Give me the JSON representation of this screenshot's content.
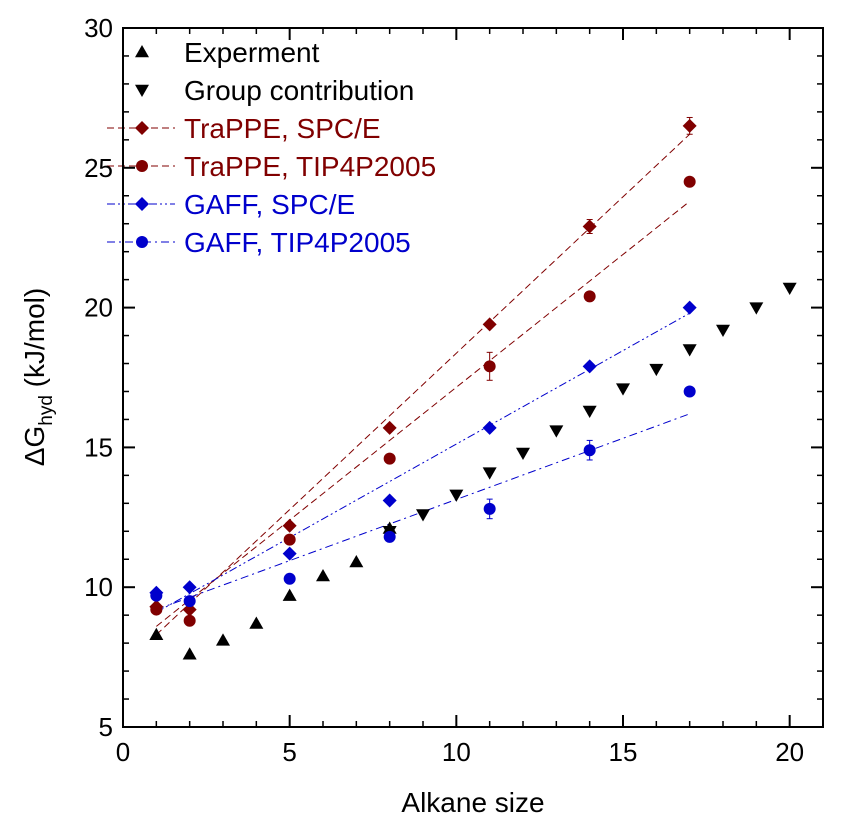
{
  "chart_data": {
    "type": "scatter",
    "xlabel": "Alkane size",
    "ylabel": {
      "main": "ΔG",
      "sub": "hyd",
      "unit": " (kJ/mol)"
    },
    "xlim": [
      0,
      21
    ],
    "ylim": [
      5,
      30
    ],
    "x_ticks": [
      0,
      5,
      10,
      15,
      20
    ],
    "y_ticks": [
      5,
      10,
      15,
      20,
      25,
      30
    ],
    "x_tick_labels": [
      "0",
      "5",
      "10",
      "15",
      "20"
    ],
    "y_tick_labels": [
      "5",
      "10",
      "15",
      "20",
      "25",
      "30"
    ],
    "grid": false,
    "legend_position": "top-left",
    "series": [
      {
        "name": "Experment",
        "marker": "triangle-up",
        "color": "#000000",
        "x": [
          1,
          2,
          3,
          4,
          5,
          6,
          7,
          8
        ],
        "y": [
          8.3,
          7.6,
          8.1,
          8.7,
          9.7,
          10.4,
          10.9,
          12.1
        ]
      },
      {
        "name": "Group contribution",
        "marker": "triangle-down",
        "color": "#000000",
        "x": [
          8,
          9,
          10,
          11,
          12,
          13,
          14,
          15,
          16,
          17,
          18,
          19,
          20
        ],
        "y": [
          12.0,
          12.6,
          13.3,
          14.1,
          14.8,
          15.6,
          16.3,
          17.1,
          17.8,
          18.5,
          19.2,
          20.0,
          20.7
        ]
      },
      {
        "name": "TraPPE, SPC/E",
        "marker": "diamond",
        "color": "#800000",
        "x": [
          1,
          2,
          5,
          8,
          11,
          14,
          17
        ],
        "y": [
          9.3,
          9.2,
          12.2,
          15.7,
          19.4,
          22.9,
          26.5
        ],
        "err": [
          0.1,
          0.1,
          0.1,
          0.1,
          0.1,
          0.25,
          0.3
        ],
        "fit": {
          "x": [
            1,
            17
          ],
          "y": [
            8.3,
            26.2
          ],
          "style": "dashed"
        }
      },
      {
        "name": "TraPPE, TIP4P2005",
        "marker": "circle",
        "color": "#800000",
        "x": [
          1,
          2,
          5,
          8,
          11,
          14,
          17
        ],
        "y": [
          9.2,
          8.8,
          11.7,
          14.6,
          17.9,
          20.4,
          24.5
        ],
        "err": [
          0.1,
          0.1,
          0.1,
          0.1,
          0.5,
          0.1,
          0.1
        ],
        "fit": {
          "x": [
            1,
            17
          ],
          "y": [
            8.6,
            23.8
          ],
          "style": "dashed"
        }
      },
      {
        "name": "GAFF, SPC/E",
        "marker": "diamond",
        "color": "#0000cc",
        "x": [
          1,
          2,
          5,
          8,
          11,
          14,
          17
        ],
        "y": [
          9.8,
          10.0,
          11.2,
          13.1,
          15.7,
          17.9,
          20.0
        ],
        "err": [
          0.1,
          0.1,
          0.1,
          0.1,
          0.1,
          0.1,
          0.1
        ],
        "fit": {
          "x": [
            1,
            17
          ],
          "y": [
            9.1,
            19.8
          ],
          "style": "dash-dot-dot"
        }
      },
      {
        "name": "GAFF, TIP4P2005",
        "marker": "circle",
        "color": "#0000cc",
        "x": [
          1,
          2,
          5,
          8,
          11,
          14,
          17
        ],
        "y": [
          9.7,
          9.5,
          10.3,
          11.8,
          12.8,
          14.9,
          17.0
        ],
        "err": [
          0.1,
          0.1,
          0.1,
          0.1,
          0.35,
          0.35,
          0.15
        ],
        "fit": {
          "x": [
            1,
            17
          ],
          "y": [
            9.2,
            16.2
          ],
          "style": "dash-dot"
        }
      }
    ]
  }
}
